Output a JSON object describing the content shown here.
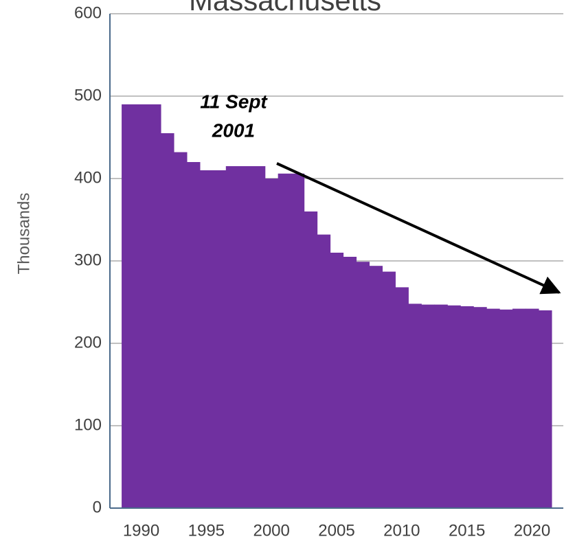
{
  "chart_data": {
    "type": "bar",
    "title": "Massachusetts",
    "y_label": "Thousands",
    "annotation": [
      "11 Sept",
      "2001"
    ],
    "x": [
      1989,
      1990,
      1991,
      1992,
      1993,
      1994,
      1995,
      1996,
      1997,
      1998,
      1999,
      2000,
      2001,
      2002,
      2003,
      2004,
      2005,
      2006,
      2007,
      2008,
      2009,
      2010,
      2011,
      2012,
      2013,
      2014,
      2015,
      2016,
      2017,
      2018,
      2019,
      2020,
      2021
    ],
    "values": [
      490,
      490,
      490,
      455,
      432,
      420,
      410,
      410,
      415,
      415,
      415,
      400,
      406,
      406,
      360,
      332,
      310,
      305,
      299,
      294,
      287,
      268,
      248,
      247,
      247,
      246,
      245,
      244,
      242,
      241,
      242,
      242,
      240
    ],
    "color": "#7030a0",
    "xlim": [
      1987.6,
      2022.4
    ],
    "xticks": [
      1990,
      1995,
      2000,
      2005,
      2010,
      2015,
      2020
    ],
    "ylim": [
      0,
      600
    ],
    "yticks": [
      0,
      100,
      200,
      300,
      400,
      500,
      600
    ],
    "grid": true
  }
}
